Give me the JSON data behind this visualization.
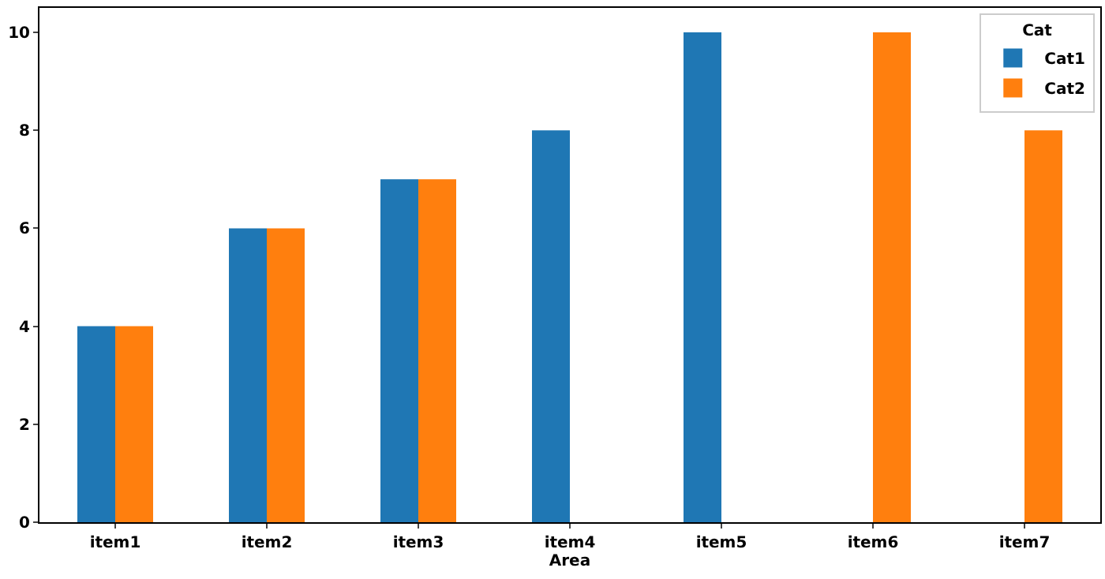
{
  "chart_data": {
    "type": "bar",
    "xlabel": "Area",
    "legend_title": "Cat",
    "legend": "top right",
    "categories": [
      "item1",
      "item2",
      "item3",
      "item4",
      "item5",
      "item6",
      "item7"
    ],
    "series": [
      {
        "name": "Cat1",
        "color": "#1f77b4",
        "values": [
          4,
          6,
          7,
          8,
          10,
          null,
          null
        ]
      },
      {
        "name": "Cat2",
        "color": "#ff7f0e",
        "values": [
          4,
          6,
          7,
          null,
          null,
          10,
          8
        ]
      }
    ],
    "ylim": [
      0,
      10.5
    ],
    "yticks": [
      0,
      2,
      4,
      6,
      8,
      10
    ]
  }
}
